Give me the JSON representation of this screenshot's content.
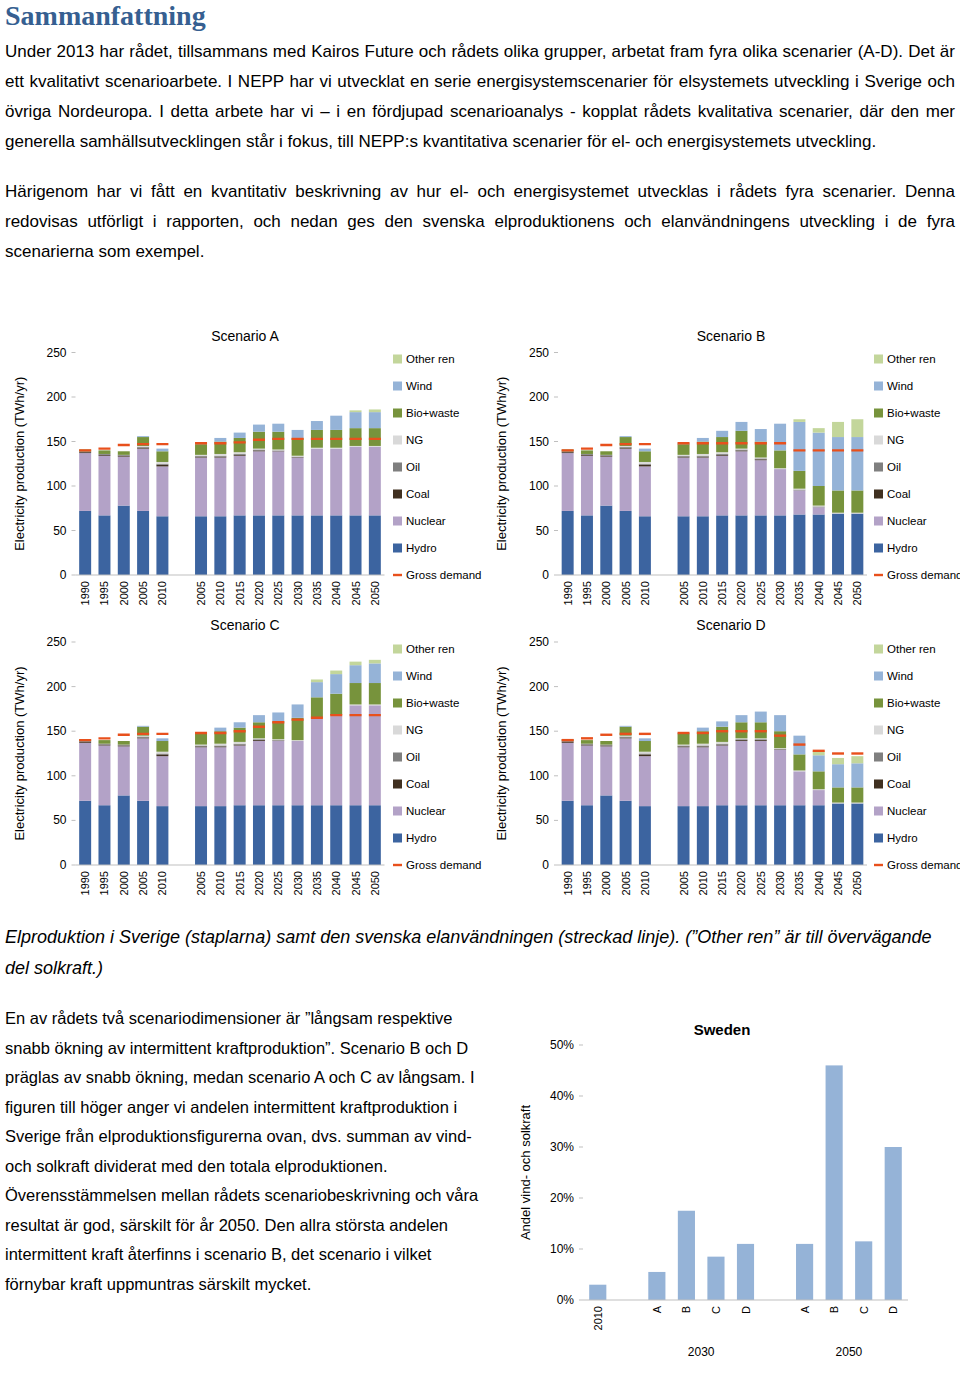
{
  "header": {
    "title": "Sammanfattning"
  },
  "paragraphs": [
    "Under 2013 har rådet, tillsammans med Kairos Future och rådets olika grupper, arbetat fram fyra olika scenarier (A-D). Det är ett kvalitativt scenarioarbete. I NEPP har vi utvecklat en serie energisystemscenarier för elsystemets utveckling i Sverige och övriga Nordeuropa. I detta arbete har vi – i en fördjupad scenarioanalys - kopplat rådets kvalitativa scenarier, där den mer generella samhällsutvecklingen står i fokus, till NEPP:s kvantitativa scenarier för el- och energisystemets utveckling.",
    "Härigenom har vi fått en kvantitativ beskrivning av hur el- och energisystemet utvecklas i rådets fyra scenarier. Denna redovisas utförligt i rapporten, och nedan ges den svenska elproduktionens och elanvändningens utveckling i de fyra scenarierna som exempel."
  ],
  "caption": "Elproduktion i Sverige (staplarna) samt den svenska elanvändningen (streckad linje). (”Other ren” är till övervägande del solkraft.)",
  "side_text": "En av rådets två scenariodimensioner är ”långsam respektive snabb ökning av intermittent kraftproduktion”. Scenario B och D präglas av snabb ökning, medan scenario A och C av långsam. I figuren till höger anger vi andelen intermittent kraftproduktion i Sverige från elproduktionsfigurerna ovan, dvs. summan av vind- och solkraft dividerat med den totala elproduktionen. Överensstämmelsen mellan rådets scenariobeskrivning och våra resultat är god, särskilt för år 2050. Den allra största andelen intermittent kraft återfinns i scenario B, det scenario i vilket förnybar kraft uppmuntras särskilt mycket.",
  "chart_data": [
    {
      "type": "bar",
      "stacked": true,
      "title": "Scenario A",
      "y_label": "Electricity production (TWh/yr)",
      "legend": "right",
      "grid": false,
      "categories": [
        "1990",
        "1995",
        "2000",
        "2005",
        "2010",
        null,
        "2005",
        "2010",
        "2015",
        "2020",
        "2025",
        "2030",
        "2035",
        "2040",
        "2045",
        "2050"
      ],
      "ylim": [
        0,
        250
      ],
      "yticks": [
        0,
        50,
        100,
        150,
        200,
        250
      ],
      "series": [
        {
          "name": "Hydro",
          "color": "#3c64a0",
          "values": [
            72,
            67,
            78,
            72,
            66,
            null,
            66,
            66,
            67,
            67,
            67,
            67,
            67,
            67,
            67,
            67
          ]
        },
        {
          "name": "Nuclear",
          "color": "#b3a2c7",
          "values": [
            65,
            67,
            55,
            70,
            56,
            null,
            66,
            66,
            67,
            72,
            72,
            65,
            75,
            75,
            77,
            77
          ]
        },
        {
          "name": "Coal",
          "color": "#403020",
          "values": [
            1,
            1,
            1,
            1,
            2,
            null,
            1,
            1,
            1,
            1,
            0.5,
            0.5,
            0,
            0,
            0,
            0
          ]
        },
        {
          "name": "Oil",
          "color": "#7f7f7f",
          "values": [
            1,
            1,
            1,
            1,
            1,
            null,
            1,
            1,
            1,
            1,
            0.5,
            0.5,
            0,
            0,
            0,
            0
          ]
        },
        {
          "name": "NG",
          "color": "#d9d9d9",
          "values": [
            0,
            0,
            0,
            1,
            2,
            null,
            1,
            2,
            2,
            1,
            1,
            1,
            1,
            1,
            1,
            1
          ]
        },
        {
          "name": "Bio+waste",
          "color": "#77933c",
          "values": [
            2,
            4,
            4,
            10,
            12,
            null,
            12,
            14,
            16,
            19,
            20,
            20,
            20,
            20,
            20,
            20
          ]
        },
        {
          "name": "Wind",
          "color": "#95b3d7",
          "values": [
            0,
            0,
            0,
            1,
            3,
            null,
            1,
            4,
            6,
            8,
            9,
            9,
            10,
            16,
            18,
            18
          ]
        },
        {
          "name": "Other ren",
          "color": "#c3d69b",
          "values": [
            0,
            0,
            0,
            0,
            0,
            null,
            0,
            0,
            0,
            0,
            0,
            0,
            0,
            0,
            2,
            3
          ]
        },
        {
          "name": "Gross demand",
          "color": "#e8501c",
          "type": "scatter",
          "marker": "dash",
          "values": [
            140,
            142,
            146,
            147,
            147,
            null,
            148,
            148,
            149,
            152,
            153,
            153,
            153,
            153,
            153,
            153
          ]
        }
      ]
    },
    {
      "type": "bar",
      "stacked": true,
      "title": "Scenario B",
      "y_label": "Electricity production (TWh/yr)",
      "legend": "right",
      "grid": false,
      "categories": [
        "1990",
        "1995",
        "2000",
        "2005",
        "2010",
        null,
        "2005",
        "2010",
        "2015",
        "2020",
        "2025",
        "2030",
        "2035",
        "2040",
        "2045",
        "2050"
      ],
      "ylim": [
        0,
        250
      ],
      "yticks": [
        0,
        50,
        100,
        150,
        200,
        250
      ],
      "series": [
        {
          "name": "Hydro",
          "color": "#3c64a0",
          "values": [
            72,
            67,
            78,
            72,
            66,
            null,
            66,
            66,
            67,
            67,
            67,
            67,
            68,
            68,
            69,
            69
          ]
        },
        {
          "name": "Nuclear",
          "color": "#b3a2c7",
          "values": [
            65,
            67,
            55,
            70,
            56,
            null,
            66,
            66,
            67,
            72,
            62,
            52,
            27,
            8,
            0,
            0
          ]
        },
        {
          "name": "Coal",
          "color": "#403020",
          "values": [
            1,
            1,
            1,
            1,
            2,
            null,
            1,
            1,
            1,
            1,
            1,
            0,
            0,
            0,
            0,
            0
          ]
        },
        {
          "name": "Oil",
          "color": "#7f7f7f",
          "values": [
            1,
            1,
            1,
            1,
            1,
            null,
            1,
            1,
            1,
            1,
            1,
            0,
            1,
            1,
            0,
            0
          ]
        },
        {
          "name": "NG",
          "color": "#d9d9d9",
          "values": [
            0,
            0,
            0,
            1,
            2,
            null,
            1,
            2,
            2,
            1,
            1,
            1,
            1,
            1,
            1,
            1
          ]
        },
        {
          "name": "Bio+waste",
          "color": "#77933c",
          "values": [
            2,
            4,
            4,
            10,
            12,
            null,
            12,
            14,
            17,
            20,
            18,
            20,
            20,
            22,
            25,
            25
          ]
        },
        {
          "name": "Wind",
          "color": "#95b3d7",
          "values": [
            0,
            0,
            0,
            1,
            3,
            null,
            1,
            4,
            7,
            10,
            14,
            30,
            55,
            60,
            60,
            60
          ]
        },
        {
          "name": "Other ren",
          "color": "#c3d69b",
          "values": [
            0,
            0,
            0,
            0,
            0,
            null,
            0,
            0,
            0,
            0,
            0,
            0,
            3,
            5,
            17,
            20
          ]
        },
        {
          "name": "Gross demand",
          "color": "#e8501c",
          "type": "scatter",
          "marker": "dash",
          "values": [
            140,
            142,
            146,
            147,
            147,
            null,
            148,
            148,
            148,
            148,
            148,
            148,
            140,
            140,
            140,
            140
          ]
        }
      ]
    },
    {
      "type": "bar",
      "stacked": true,
      "title": "Scenario C",
      "y_label": "Electricity production (TWh/yr)",
      "legend": "right",
      "grid": false,
      "categories": [
        "1990",
        "1995",
        "2000",
        "2005",
        "2010",
        null,
        "2005",
        "2010",
        "2015",
        "2020",
        "2025",
        "2030",
        "2035",
        "2040",
        "2045",
        "2050"
      ],
      "ylim": [
        0,
        250
      ],
      "yticks": [
        0,
        50,
        100,
        150,
        200,
        250
      ],
      "series": [
        {
          "name": "Hydro",
          "color": "#3c64a0",
          "values": [
            72,
            67,
            78,
            72,
            66,
            null,
            66,
            66,
            67,
            67,
            67,
            67,
            67,
            67,
            67,
            67
          ]
        },
        {
          "name": "Nuclear",
          "color": "#b3a2c7",
          "values": [
            65,
            67,
            55,
            70,
            56,
            null,
            66,
            66,
            67,
            72,
            72,
            72,
            97,
            100,
            112,
            112
          ]
        },
        {
          "name": "Coal",
          "color": "#403020",
          "values": [
            1,
            1,
            1,
            1,
            2,
            null,
            1,
            1,
            1,
            1,
            0.5,
            0,
            0,
            0,
            0,
            0
          ]
        },
        {
          "name": "Oil",
          "color": "#7f7f7f",
          "values": [
            1,
            1,
            1,
            1,
            1,
            null,
            1,
            1,
            1,
            1,
            0.5,
            0,
            0,
            0,
            0,
            0
          ]
        },
        {
          "name": "NG",
          "color": "#d9d9d9",
          "values": [
            0,
            0,
            0,
            1,
            2,
            null,
            1,
            2,
            2,
            1,
            1,
            1,
            1,
            1,
            1,
            1
          ]
        },
        {
          "name": "Bio+waste",
          "color": "#77933c",
          "values": [
            2,
            4,
            4,
            10,
            12,
            null,
            12,
            14,
            16,
            18,
            20,
            25,
            23,
            24,
            24,
            24
          ]
        },
        {
          "name": "Wind",
          "color": "#95b3d7",
          "values": [
            0,
            0,
            0,
            1,
            3,
            null,
            1,
            4,
            6,
            8,
            10,
            15,
            17,
            22,
            20,
            22
          ]
        },
        {
          "name": "Other ren",
          "color": "#c3d69b",
          "values": [
            0,
            0,
            0,
            0,
            0,
            null,
            0,
            0,
            0,
            0,
            0,
            0,
            3,
            4,
            4,
            4
          ]
        },
        {
          "name": "Gross demand",
          "color": "#e8501c",
          "type": "scatter",
          "marker": "dash",
          "values": [
            140,
            142,
            146,
            147,
            147,
            null,
            148,
            148,
            150,
            155,
            160,
            163,
            165,
            168,
            168,
            168
          ]
        }
      ]
    },
    {
      "type": "bar",
      "stacked": true,
      "title": "Scenario D",
      "y_label": "Electricity production (TWh/yr)",
      "legend": "right",
      "grid": false,
      "categories": [
        "1990",
        "1995",
        "2000",
        "2005",
        "2010",
        null,
        "2005",
        "2010",
        "2015",
        "2020",
        "2025",
        "2030",
        "2035",
        "2040",
        "2045",
        "2050"
      ],
      "ylim": [
        0,
        250
      ],
      "yticks": [
        0,
        50,
        100,
        150,
        200,
        250
      ],
      "series": [
        {
          "name": "Hydro",
          "color": "#3c64a0",
          "values": [
            72,
            67,
            78,
            72,
            66,
            null,
            66,
            66,
            67,
            67,
            67,
            67,
            67,
            67,
            69,
            69
          ]
        },
        {
          "name": "Nuclear",
          "color": "#b3a2c7",
          "values": [
            65,
            67,
            55,
            70,
            56,
            null,
            66,
            66,
            67,
            72,
            72,
            62,
            38,
            17,
            0,
            0
          ]
        },
        {
          "name": "Coal",
          "color": "#403020",
          "values": [
            1,
            1,
            1,
            1,
            2,
            null,
            1,
            1,
            1,
            1,
            1,
            0.5,
            0,
            0,
            0,
            0
          ]
        },
        {
          "name": "Oil",
          "color": "#7f7f7f",
          "values": [
            1,
            1,
            1,
            1,
            1,
            null,
            1,
            1,
            1,
            1,
            1,
            0.5,
            0,
            0,
            0,
            0
          ]
        },
        {
          "name": "NG",
          "color": "#d9d9d9",
          "values": [
            0,
            0,
            0,
            1,
            2,
            null,
            1,
            2,
            2,
            1,
            1,
            1,
            1,
            1,
            1,
            1
          ]
        },
        {
          "name": "Bio+waste",
          "color": "#77933c",
          "values": [
            2,
            4,
            4,
            10,
            12,
            null,
            12,
            14,
            17,
            18,
            18,
            19,
            18,
            20,
            17,
            17
          ]
        },
        {
          "name": "Wind",
          "color": "#95b3d7",
          "values": [
            0,
            0,
            0,
            1,
            3,
            null,
            1,
            4,
            6,
            8,
            12,
            18,
            21,
            18,
            26,
            27
          ]
        },
        {
          "name": "Other ren",
          "color": "#c3d69b",
          "values": [
            0,
            0,
            0,
            0,
            0,
            null,
            0,
            0,
            0,
            0,
            0,
            0,
            0,
            5,
            7,
            8
          ]
        },
        {
          "name": "Gross demand",
          "color": "#e8501c",
          "type": "scatter",
          "marker": "dash",
          "values": [
            140,
            142,
            146,
            147,
            147,
            null,
            148,
            148,
            150,
            150,
            150,
            145,
            135,
            128,
            125,
            125
          ]
        }
      ]
    },
    {
      "type": "bar",
      "title": "Sweden",
      "y_label": "Andel vind- och solkraft",
      "grid": false,
      "categories": [
        "2010",
        null,
        "A",
        "B",
        "C",
        "D",
        null,
        "A",
        "B",
        "C",
        "D"
      ],
      "values": [
        3,
        null,
        5.5,
        17.5,
        8.5,
        11,
        null,
        11,
        46,
        11.5,
        30
      ],
      "color": "#95b3d7",
      "ylim": [
        0,
        50
      ],
      "yticks": [
        {
          "value": 0,
          "label": "0%"
        },
        {
          "value": 10,
          "label": "10%"
        },
        {
          "value": 20,
          "label": "20%"
        },
        {
          "value": 30,
          "label": "30%"
        },
        {
          "value": 40,
          "label": "40%"
        },
        {
          "value": 50,
          "label": "50%"
        }
      ],
      "groups": [
        {
          "label": "2030",
          "categories": [
            2,
            5
          ]
        },
        {
          "label": "2050",
          "categories": [
            7,
            10
          ]
        }
      ]
    }
  ]
}
